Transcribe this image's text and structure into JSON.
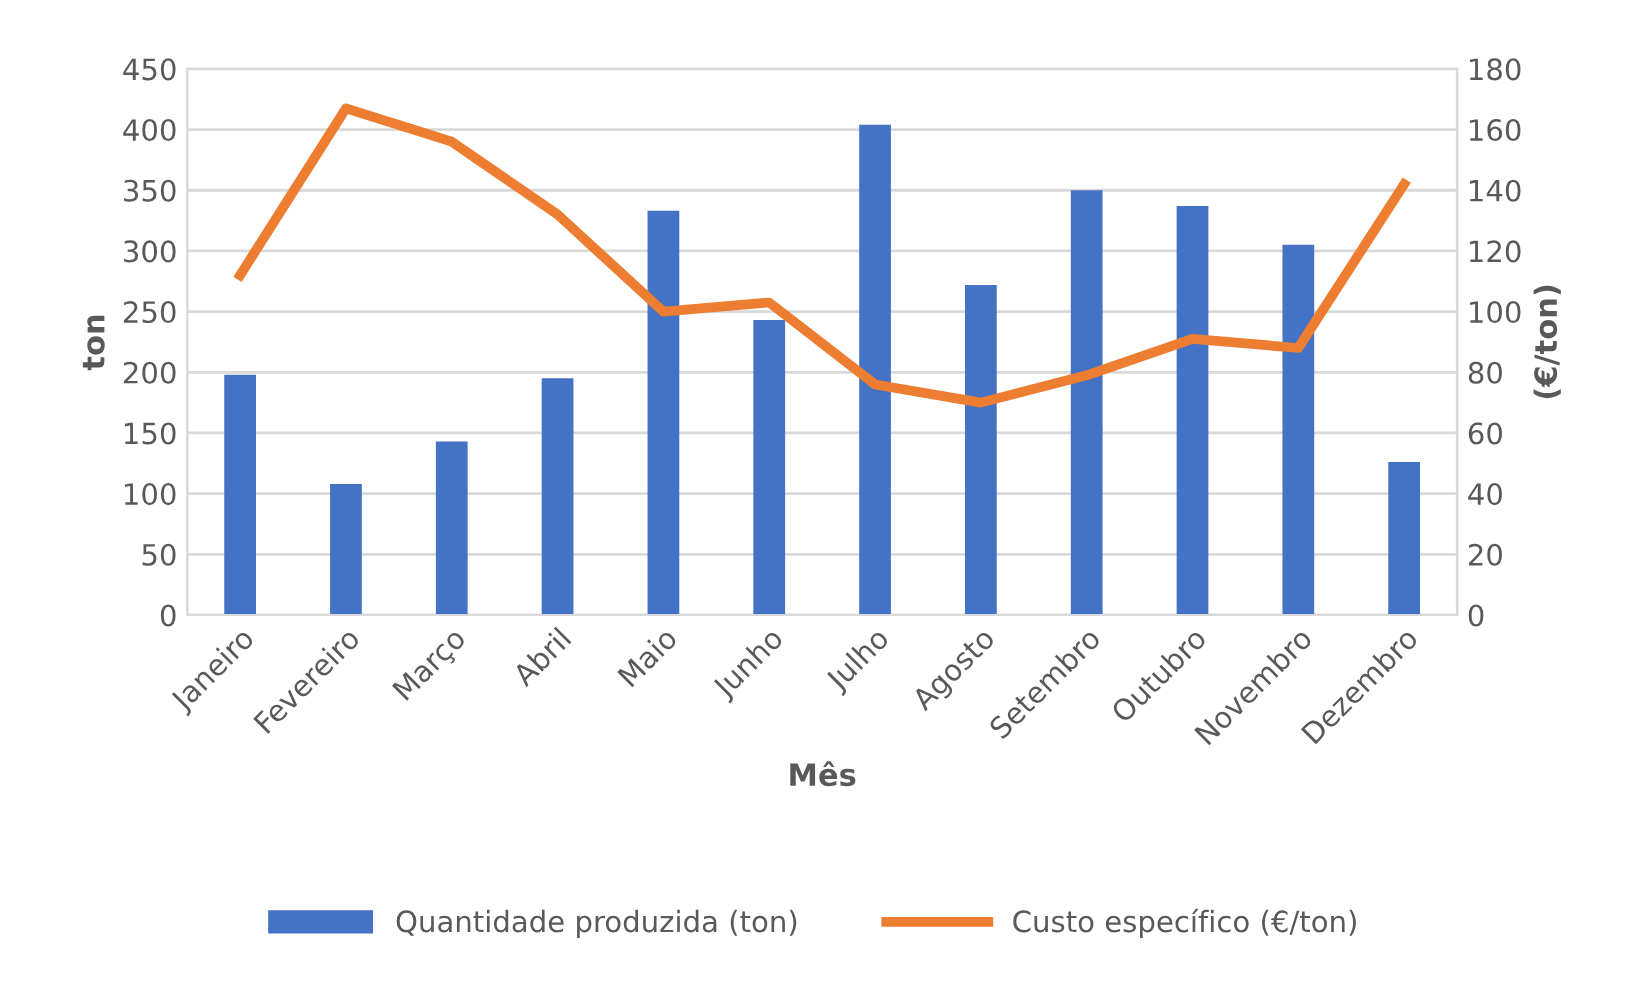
{
  "chart_data": {
    "type": "bar",
    "xlabel": "Mês",
    "ylabel": "ton",
    "y2label": "(€/ton)",
    "categories": [
      "Janeiro",
      "Fevereiro",
      "Março",
      "Abril",
      "Maio",
      "Junho",
      "Julho",
      "Agosto",
      "Setembro",
      "Outubro",
      "Novembro",
      "Dezembro"
    ],
    "series": [
      {
        "name": "Quantidade produzida (ton)",
        "color": "#4472c4",
        "values": [
          198,
          108,
          143,
          195,
          333,
          243,
          404,
          272,
          350,
          337,
          305,
          126
        ]
      },
      {
        "name": "Custo específico (€/ton)",
        "type": "line",
        "axis": "y2",
        "color": "#ed7d31",
        "values": [
          112,
          167,
          156,
          132,
          100,
          103,
          76,
          70,
          79,
          91,
          88,
          142
        ]
      }
    ],
    "ylim": [
      0,
      450
    ],
    "yticks": [
      0,
      50,
      100,
      150,
      200,
      250,
      300,
      350,
      400,
      450
    ],
    "y2lim": [
      0,
      180
    ],
    "y2ticks": [
      0,
      20,
      40,
      60,
      80,
      100,
      120,
      140,
      160,
      180
    ],
    "grid": "y",
    "legend": "bottom",
    "marker": "none",
    "line_style": "solid"
  }
}
